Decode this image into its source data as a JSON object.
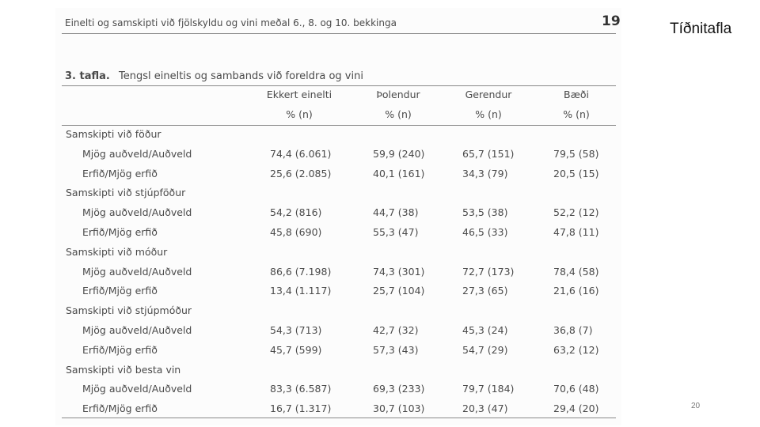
{
  "slide_title": "Tíðnitafla",
  "slide_number": "20",
  "document": {
    "header": {
      "title": "Einelti og samskipti við fjölskyldu og vini meðal 6., 8. og 10. bekkinga",
      "page": "19"
    },
    "caption": {
      "label": "3. tafla.",
      "text": "Tengsl eineltis og sambands við foreldra og vini"
    },
    "table": {
      "columns": [
        "Ekkert einelti",
        "Þolendur",
        "Gerendur",
        "Bæði"
      ],
      "units": [
        "% (n)",
        "% (n)",
        "% (n)",
        "% (n)"
      ],
      "groups": [
        {
          "name": "Samskipti við föður",
          "rows": [
            {
              "label": "Mjög auðveld/Auðveld",
              "values": [
                "74,4 (6.061)",
                "59,9 (240)",
                "65,7 (151)",
                "79,5 (58)"
              ]
            },
            {
              "label": "Erfið/Mjög erfið",
              "values": [
                "25,6 (2.085)",
                "40,1 (161)",
                "34,3 (79)",
                "20,5 (15)"
              ]
            }
          ]
        },
        {
          "name": "Samskipti við stjúpföður",
          "rows": [
            {
              "label": "Mjög auðveld/Auðveld",
              "values": [
                "54,2 (816)",
                "44,7 (38)",
                "53,5 (38)",
                "52,2 (12)"
              ]
            },
            {
              "label": "Erfið/Mjög erfið",
              "values": [
                "45,8 (690)",
                "55,3 (47)",
                "46,5 (33)",
                "47,8 (11)"
              ]
            }
          ]
        },
        {
          "name": "Samskipti við móður",
          "rows": [
            {
              "label": "Mjög auðveld/Auðveld",
              "values": [
                "86,6 (7.198)",
                "74,3 (301)",
                "72,7 (173)",
                "78,4 (58)"
              ]
            },
            {
              "label": "Erfið/Mjög erfið",
              "values": [
                "13,4 (1.117)",
                "25,7 (104)",
                "27,3 (65)",
                "21,6 (16)"
              ]
            }
          ]
        },
        {
          "name": "Samskipti við stjúpmóður",
          "rows": [
            {
              "label": "Mjög auðveld/Auðveld",
              "values": [
                "54,3 (713)",
                "42,7 (32)",
                "45,3 (24)",
                "36,8 (7)"
              ]
            },
            {
              "label": "Erfið/Mjög erfið",
              "values": [
                "45,7 (599)",
                "57,3 (43)",
                "54,7 (29)",
                "63,2 (12)"
              ]
            }
          ]
        },
        {
          "name": "Samskipti við besta vin",
          "rows": [
            {
              "label": "Mjög auðveld/Auðveld",
              "values": [
                "83,3 (6.587)",
                "69,3 (233)",
                "79,7 (184)",
                "70,6 (48)"
              ]
            },
            {
              "label": "Erfið/Mjög erfið",
              "values": [
                "16,7 (1.317)",
                "30,7 (103)",
                "20,3 (47)",
                "29,4 (20)"
              ]
            }
          ]
        }
      ]
    }
  }
}
